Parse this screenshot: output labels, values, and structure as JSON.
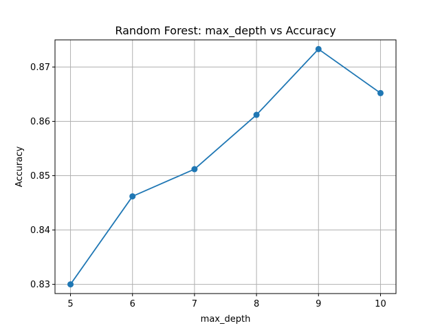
{
  "chart_data": {
    "type": "line",
    "title": "Random Forest: max_depth vs Accuracy",
    "xlabel": "max_depth",
    "ylabel": "Accuracy",
    "x": [
      5,
      6,
      7,
      8,
      9,
      10
    ],
    "series": [
      {
        "name": "",
        "values": [
          0.83,
          0.8462,
          0.8512,
          0.8612,
          0.8733,
          0.8652
        ],
        "color": "#1f77b4",
        "marker": "circle"
      }
    ],
    "xticks": [
      "5",
      "6",
      "7",
      "8",
      "9",
      "10"
    ],
    "yticks": [
      "0.83",
      "0.84",
      "0.85",
      "0.86",
      "0.87"
    ],
    "xlim": [
      4.75,
      10.25
    ],
    "ylim": [
      0.8283,
      0.875
    ],
    "grid": true,
    "legend": "none"
  }
}
